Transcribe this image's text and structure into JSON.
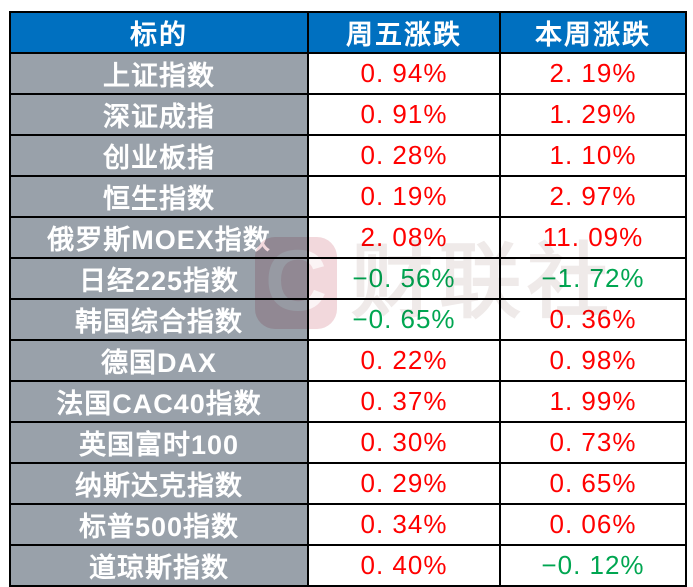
{
  "colors": {
    "header_bg": "#0070C0",
    "header_text": "#FFFFFF",
    "label_bg": "#99A1AA",
    "label_text": "#FFFFFF",
    "up_red": "#FF0000",
    "down_green": "#00A651",
    "border": "#000000",
    "watermark_pink": "#F2D8DC"
  },
  "watermark": {
    "logo_letter": "C",
    "text": "财联社"
  },
  "chart_data": {
    "type": "table",
    "title": "",
    "columns": [
      "标的",
      "周五涨跌",
      "本周涨跌"
    ],
    "color_convention": "red = up, green = down",
    "rows": [
      {
        "name": "上证指数",
        "friday": "0. 94%",
        "friday_color": "red",
        "week": "2. 19%",
        "week_color": "red"
      },
      {
        "name": "深证成指",
        "friday": "0. 91%",
        "friday_color": "red",
        "week": "1. 29%",
        "week_color": "red"
      },
      {
        "name": "创业板指",
        "friday": "0. 28%",
        "friday_color": "red",
        "week": "1. 10%",
        "week_color": "red"
      },
      {
        "name": "恒生指数",
        "friday": "0. 19%",
        "friday_color": "red",
        "week": "2. 97%",
        "week_color": "red"
      },
      {
        "name": "俄罗斯MOEX指数",
        "friday": "2. 08%",
        "friday_color": "red",
        "week": "11. 09%",
        "week_color": "red"
      },
      {
        "name": "日经225指数",
        "friday": "−0. 56%",
        "friday_color": "green",
        "week": "−1. 72%",
        "week_color": "green"
      },
      {
        "name": "韩国综合指数",
        "friday": "−0. 65%",
        "friday_color": "green",
        "week": "0. 36%",
        "week_color": "red"
      },
      {
        "name": "德国DAX",
        "friday": "0. 22%",
        "friday_color": "red",
        "week": "0. 98%",
        "week_color": "red"
      },
      {
        "name": "法国CAC40指数",
        "friday": "0. 37%",
        "friday_color": "red",
        "week": "1. 99%",
        "week_color": "red"
      },
      {
        "name": "英国富时100",
        "friday": "0. 30%",
        "friday_color": "red",
        "week": "0. 73%",
        "week_color": "red"
      },
      {
        "name": "纳斯达克指数",
        "friday": "0. 29%",
        "friday_color": "red",
        "week": "0. 65%",
        "week_color": "red"
      },
      {
        "name": "标普500指数",
        "friday": "0. 34%",
        "friday_color": "red",
        "week": "0. 06%",
        "week_color": "red"
      },
      {
        "name": "道琼斯指数",
        "friday": "0. 40%",
        "friday_color": "red",
        "week": "−0. 12%",
        "week_color": "green"
      }
    ]
  }
}
